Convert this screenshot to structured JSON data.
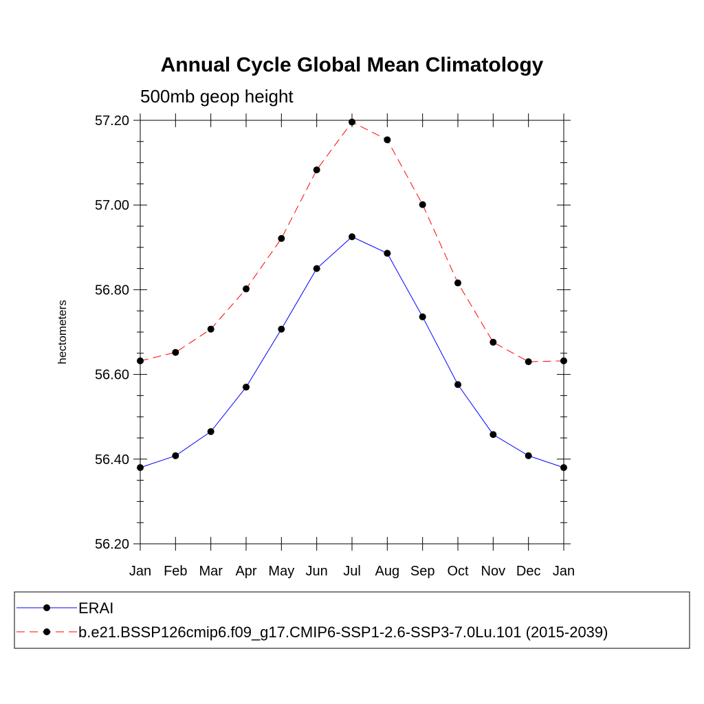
{
  "chart_data": {
    "type": "line",
    "title": "Annual Cycle Global Mean Climatology",
    "subtitle": "500mb geop height",
    "xlabel": "",
    "ylabel": "hectometers",
    "categories": [
      "Jan",
      "Feb",
      "Mar",
      "Apr",
      "May",
      "Jun",
      "Jul",
      "Aug",
      "Sep",
      "Oct",
      "Nov",
      "Dec",
      "Jan"
    ],
    "ylim": [
      56.2,
      57.2
    ],
    "yticks": [
      "56.20",
      "56.40",
      "56.60",
      "56.80",
      "57.00",
      "57.20"
    ],
    "grid": false,
    "legend_position": "bottom",
    "series": [
      {
        "name": "ERAI",
        "color": "#0000ff",
        "line_style": "solid",
        "marker": "filled-circle",
        "values": [
          56.38,
          56.408,
          56.465,
          56.57,
          56.707,
          56.85,
          56.925,
          56.886,
          56.736,
          56.576,
          56.458,
          56.408,
          56.38
        ]
      },
      {
        "name": "b.e21.BSSP126cmip6.f09_g17.CMIP6-SSP1-2.6-SSP3-7.0Lu.101 (2015-2039)",
        "color": "#ff0000",
        "line_style": "dashed",
        "marker": "filled-circle",
        "values": [
          56.632,
          56.652,
          56.707,
          56.802,
          56.921,
          57.083,
          57.196,
          57.154,
          57.001,
          56.816,
          56.676,
          56.63,
          56.632
        ]
      }
    ]
  }
}
